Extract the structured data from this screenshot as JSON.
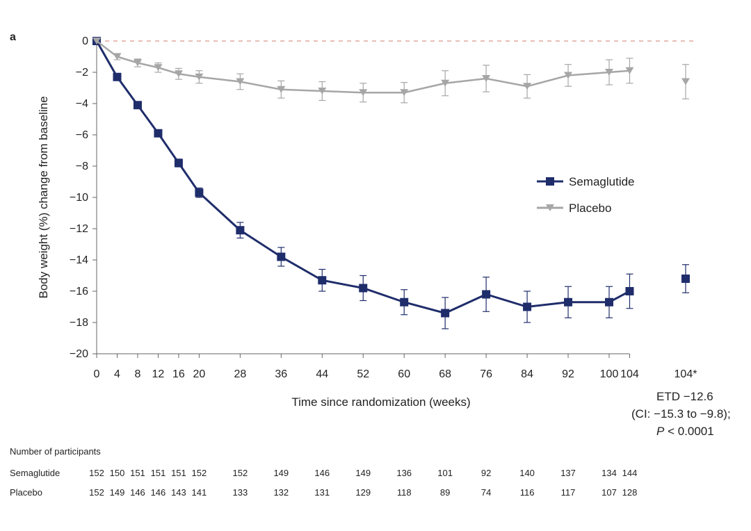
{
  "chart_data": {
    "type": "line",
    "panel_label": "a",
    "xlabel": "Time since randomization (weeks)",
    "ylabel": "Body weight (%) change from baseline",
    "ylim": [
      -20,
      0
    ],
    "yticks": [
      0,
      -2,
      -4,
      -6,
      -8,
      -10,
      -12,
      -14,
      -16,
      -18,
      -20
    ],
    "ytick_labels": [
      "0",
      "−2",
      "−4",
      "−6",
      "−8",
      "−10",
      "−12",
      "−14",
      "−16",
      "−18",
      "−20"
    ],
    "x": [
      0,
      4,
      8,
      12,
      16,
      20,
      28,
      36,
      44,
      52,
      60,
      68,
      76,
      84,
      92,
      100,
      104
    ],
    "x_labels": [
      "0",
      "4",
      "8",
      "12",
      "16",
      "20",
      "28",
      "36",
      "44",
      "52",
      "60",
      "68",
      "76",
      "84",
      "92",
      "100",
      "104"
    ],
    "extra_point_label": "104*",
    "reference_line": 0,
    "legend_position": "right",
    "series": [
      {
        "name": "Semaglutide",
        "color": "#1f2d6b",
        "marker": "square",
        "values": [
          0,
          -2.3,
          -4.1,
          -5.9,
          -7.8,
          -9.7,
          -12.1,
          -13.8,
          -15.3,
          -15.8,
          -16.7,
          -17.4,
          -16.2,
          -17.0,
          -16.7,
          -16.7,
          -16.0
        ],
        "errors": [
          0,
          0.15,
          0.2,
          0.2,
          0.25,
          0.3,
          0.5,
          0.6,
          0.7,
          0.8,
          0.8,
          1.0,
          1.1,
          1.0,
          1.0,
          1.0,
          1.1
        ],
        "extra_value": -15.2,
        "extra_error": 0.9
      },
      {
        "name": "Placebo",
        "color": "#a6a6a6",
        "marker": "triangle-down",
        "values": [
          0,
          -1.0,
          -1.4,
          -1.7,
          -2.1,
          -2.3,
          -2.6,
          -3.1,
          -3.2,
          -3.3,
          -3.3,
          -2.7,
          -2.4,
          -2.9,
          -2.2,
          -2.0,
          -1.9
        ],
        "errors": [
          0,
          0.2,
          0.25,
          0.3,
          0.35,
          0.4,
          0.5,
          0.55,
          0.6,
          0.6,
          0.65,
          0.8,
          0.85,
          0.75,
          0.7,
          0.8,
          0.8
        ],
        "extra_value": -2.6,
        "extra_error": 1.1
      }
    ],
    "annotation": {
      "line1": "ETD −12.6",
      "line2": "(CI: −15.3 to −9.8);",
      "line3_italic": "P",
      "line3_rest": " < 0.0001"
    },
    "participants": {
      "title": "Number of participants",
      "rows": [
        {
          "name": "Semaglutide",
          "values": [
            "152",
            "150",
            "151",
            "151",
            "151",
            "152",
            "152",
            "149",
            "146",
            "149",
            "136",
            "101",
            "92",
            "140",
            "137",
            "134",
            "144"
          ]
        },
        {
          "name": "Placebo",
          "values": [
            "152",
            "149",
            "146",
            "146",
            "143",
            "141",
            "133",
            "132",
            "131",
            "129",
            "118",
            "89",
            "74",
            "116",
            "117",
            "107",
            "128"
          ]
        }
      ]
    }
  }
}
